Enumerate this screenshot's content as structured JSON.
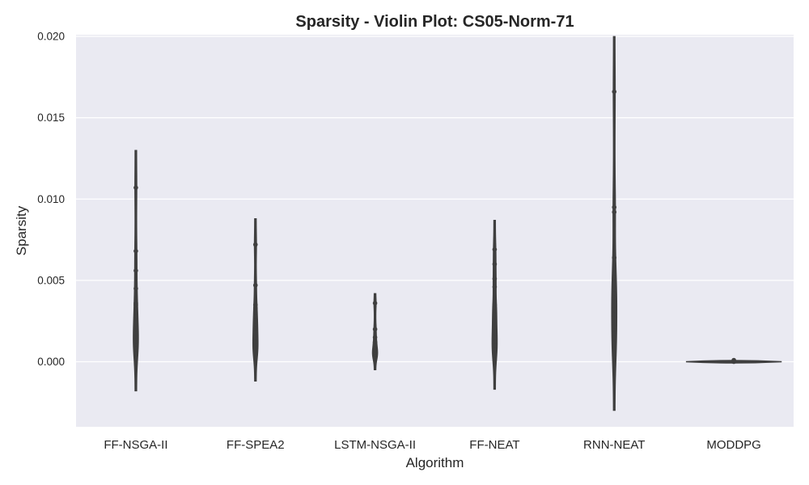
{
  "chart_data": {
    "type": "violin",
    "title": "Sparsity - Violin Plot: CS05-Norm-71",
    "xlabel": "Algorithm",
    "ylabel": "Sparsity",
    "ylim": [
      -0.004,
      0.0201
    ],
    "yticks": [
      0.0,
      0.005,
      0.01,
      0.015,
      0.02
    ],
    "ytick_labels": [
      "0.000",
      "0.005",
      "0.010",
      "0.015",
      "0.020"
    ],
    "grid": true,
    "colors": {
      "plot_background": "#eaeaf2",
      "grid": "#ffffff",
      "violin_line": "#3f3f3f",
      "point": "#3f3f3f",
      "text": "#262626"
    },
    "categories": [
      "FF-NSGA-II",
      "FF-SPEA2",
      "LSTM-NSGA-II",
      "FF-NEAT",
      "RNN-NEAT",
      "MODDPG"
    ],
    "violins": [
      {
        "category": "FF-NSGA-II",
        "range": [
          -0.0018,
          0.013
        ],
        "points": [
          0.0107,
          0.0068,
          0.0056,
          0.0045,
          0.0036,
          0.0035,
          0.0028,
          0.0026,
          0.0024,
          0.0019,
          0.0017,
          0.0015,
          0.0013,
          0.0012,
          0.001,
          0.0008,
          0.0006,
          0.0005
        ]
      },
      {
        "category": "FF-SPEA2",
        "range": [
          -0.0012,
          0.0088
        ],
        "points": [
          0.0072,
          0.0047,
          0.0035,
          0.0033,
          0.0028,
          0.0025,
          0.0022,
          0.002,
          0.0018,
          0.0015,
          0.0012,
          0.001,
          0.0009,
          0.0007,
          0.0005,
          0.0004
        ]
      },
      {
        "category": "LSTM-NSGA-II",
        "range": [
          -0.0005,
          0.0042
        ],
        "points": [
          0.0036,
          0.002,
          0.0015,
          0.0012,
          0.001,
          0.0008,
          0.0007,
          0.0006,
          0.0005,
          0.0004,
          0.0003,
          0.0002
        ]
      },
      {
        "category": "FF-NEAT",
        "range": [
          -0.0017,
          0.0087
        ],
        "points": [
          0.0069,
          0.006,
          0.0051,
          0.0046,
          0.0035,
          0.0033,
          0.0029,
          0.0025,
          0.0021,
          0.0018,
          0.0015,
          0.0012,
          0.001,
          0.0007,
          0.0005,
          0.0001
        ]
      },
      {
        "category": "RNN-NEAT",
        "range": [
          -0.003,
          0.02
        ],
        "points": [
          0.0166,
          0.0095,
          0.0092,
          0.0064,
          0.0052,
          0.0049,
          0.0045,
          0.0042,
          0.0037,
          0.0034,
          0.0032,
          0.0029,
          0.0019,
          0.0017,
          0.0015,
          0.0011,
          0.0006,
          0.0004
        ]
      },
      {
        "category": "MODDPG",
        "range": [
          -0.0001,
          0.0001
        ],
        "points": [
          0.0001,
          5e-05,
          0.0
        ]
      }
    ]
  }
}
